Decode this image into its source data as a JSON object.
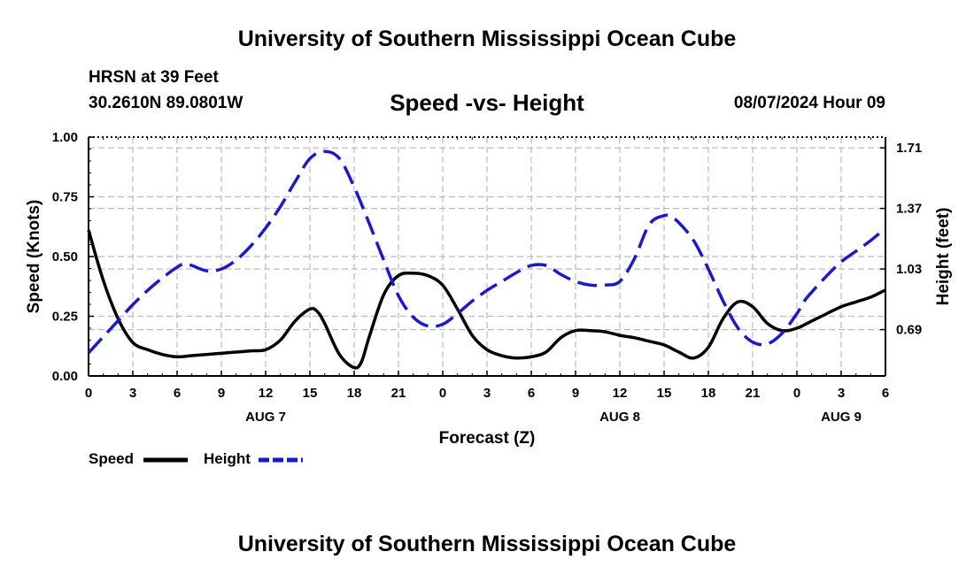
{
  "page": {
    "title_top": "University of Southern Mississippi Ocean Cube",
    "title_bottom": "University of Southern Mississippi Ocean Cube",
    "station": "HRSN at 39 Feet",
    "coords": "30.2610N  89.0801W",
    "datetime": "08/07/2024 Hour 09"
  },
  "chart_data": {
    "type": "line",
    "title": "Speed -vs- Height",
    "xlabel": "Forecast (Z)",
    "ylabel_left": "Speed (Knots)",
    "ylabel_right": "Height (feet)",
    "x_ticks": [
      "0",
      "3",
      "6",
      "9",
      "12",
      "15",
      "18",
      "21",
      "0",
      "3",
      "6",
      "9",
      "12",
      "15",
      "18",
      "21",
      "0",
      "3",
      "6"
    ],
    "date_labels": [
      {
        "label": "AUG 7",
        "at_hour": 12
      },
      {
        "label": "AUG 8",
        "at_hour": 36
      },
      {
        "label": "AUG 9",
        "at_hour": 51
      }
    ],
    "xlim": [
      0,
      54
    ],
    "ylim_left": [
      0,
      1
    ],
    "y_ticks_left": [
      "0.00",
      "0.25",
      "0.50",
      "0.75",
      "1.00"
    ],
    "ylim_right": [
      0.43,
      1.77
    ],
    "y_ticks_right": [
      "0.69",
      "1.03",
      "1.37",
      "1.71"
    ],
    "grid": true,
    "series": [
      {
        "name": "Speed",
        "axis": "left",
        "color": "#000000",
        "style": "solid",
        "x": [
          0,
          1,
          2,
          3,
          4,
          5,
          6,
          7,
          8,
          9,
          10,
          11,
          12,
          13,
          14,
          15,
          15.5,
          16,
          17,
          18,
          18.5,
          19,
          20,
          21,
          22,
          23,
          24,
          25,
          26,
          27,
          28,
          29,
          30,
          31,
          32,
          33,
          34,
          35,
          36,
          37,
          38,
          39,
          40,
          41,
          42,
          43,
          44,
          45,
          46,
          47,
          48,
          49,
          50,
          51,
          52,
          53,
          54
        ],
        "values": [
          0.61,
          0.4,
          0.24,
          0.14,
          0.11,
          0.09,
          0.08,
          0.085,
          0.09,
          0.095,
          0.1,
          0.105,
          0.11,
          0.15,
          0.23,
          0.28,
          0.27,
          0.22,
          0.09,
          0.035,
          0.06,
          0.16,
          0.34,
          0.42,
          0.43,
          0.42,
          0.38,
          0.28,
          0.17,
          0.11,
          0.085,
          0.075,
          0.08,
          0.1,
          0.16,
          0.19,
          0.19,
          0.185,
          0.17,
          0.16,
          0.145,
          0.13,
          0.1,
          0.075,
          0.12,
          0.24,
          0.31,
          0.29,
          0.22,
          0.19,
          0.2,
          0.23,
          0.26,
          0.29,
          0.31,
          0.33,
          0.36
        ]
      },
      {
        "name": "Height",
        "axis": "right",
        "color": "#1a1acc",
        "style": "dashed",
        "x": [
          0,
          1,
          2,
          3,
          4,
          5,
          6,
          6.5,
          7,
          8,
          9,
          10,
          11,
          12,
          13,
          14,
          15,
          16,
          17,
          18,
          19,
          20,
          21,
          22,
          23,
          24,
          25,
          26,
          27,
          28,
          29,
          30,
          31,
          32,
          33,
          34,
          35,
          36,
          37,
          38,
          39,
          39.5,
          40,
          41,
          42,
          43,
          44,
          45,
          46,
          47,
          48,
          48.5,
          49,
          50,
          51,
          52,
          53,
          54
        ],
        "values": [
          0.56,
          0.65,
          0.74,
          0.83,
          0.91,
          0.98,
          1.04,
          1.06,
          1.05,
          1.02,
          1.03,
          1.08,
          1.16,
          1.26,
          1.38,
          1.52,
          1.65,
          1.69,
          1.65,
          1.49,
          1.29,
          1.08,
          0.88,
          0.76,
          0.71,
          0.72,
          0.78,
          0.85,
          0.91,
          0.96,
          1.01,
          1.05,
          1.05,
          1.0,
          0.96,
          0.94,
          0.94,
          0.96,
          1.09,
          1.28,
          1.33,
          1.32,
          1.29,
          1.19,
          1.03,
          0.85,
          0.7,
          0.62,
          0.61,
          0.67,
          0.78,
          0.85,
          0.9,
          0.99,
          1.07,
          1.13,
          1.19,
          1.26
        ]
      }
    ],
    "legend": [
      {
        "label": "Speed",
        "color": "#000000",
        "style": "solid"
      },
      {
        "label": "Height",
        "color": "#1a1acc",
        "style": "dashed"
      }
    ]
  }
}
